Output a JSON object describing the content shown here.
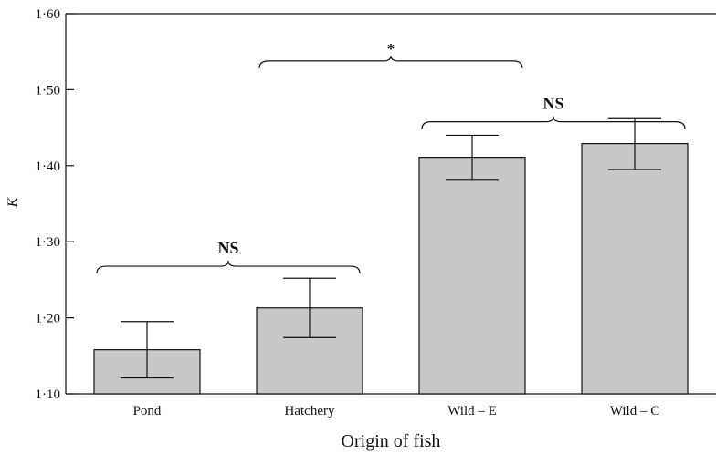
{
  "chart_data": {
    "type": "bar",
    "title": "",
    "xlabel": "Origin of fish",
    "ylabel": "K",
    "categories": [
      "Pond",
      "Hatchery",
      "Wild – E",
      "Wild – C"
    ],
    "values": [
      1.158,
      1.213,
      1.411,
      1.429
    ],
    "error_upper": [
      1.195,
      1.252,
      1.44,
      1.463
    ],
    "error_lower": [
      1.121,
      1.174,
      1.382,
      1.395
    ],
    "ylim": [
      1.1,
      1.6
    ],
    "yticks": [
      1.1,
      1.2,
      1.3,
      1.4,
      1.5,
      1.6
    ],
    "ytick_labels": [
      "1·10",
      "1·20",
      "1·30",
      "1·40",
      "1·50",
      "1·60"
    ],
    "bar_color": "#c8c8c8",
    "grid": false,
    "annotations": [
      {
        "text": "NS",
        "from": 0,
        "to": 1,
        "y": 1.275,
        "style": "bold"
      },
      {
        "text": "*",
        "from": 1,
        "to": 2,
        "y": 1.545,
        "style": "normal"
      },
      {
        "text": "NS",
        "from": 2,
        "to": 3,
        "y": 1.465,
        "style": "bold"
      }
    ]
  }
}
